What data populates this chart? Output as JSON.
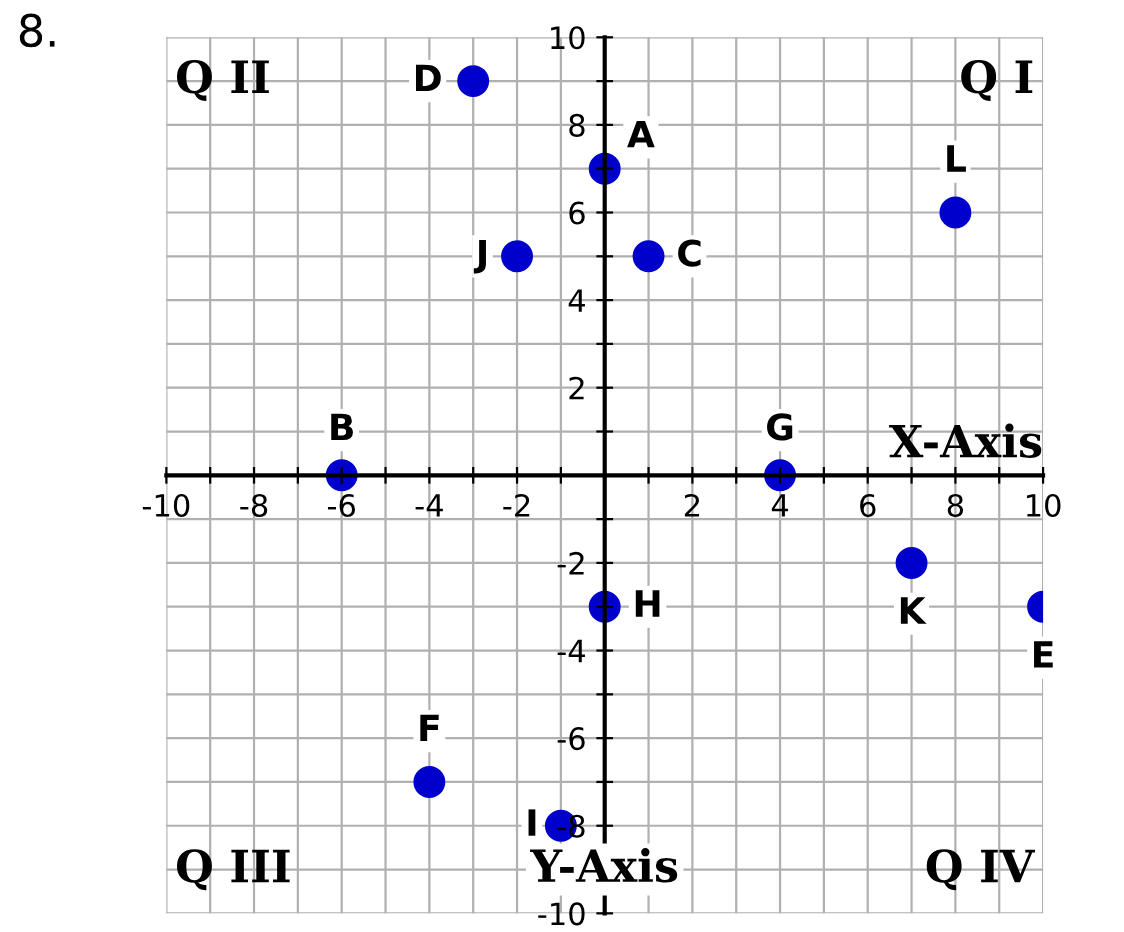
{
  "chart_data": {
    "type": "scatter",
    "title": "8.",
    "xlabel": "X-Axis",
    "ylabel": "Y-Axis",
    "x": [
      0,
      -6,
      1,
      -3,
      10,
      -4,
      4,
      0,
      -1,
      -2,
      7,
      8
    ],
    "values": [
      7,
      0,
      5,
      9,
      -3,
      -7,
      0,
      -3,
      -8,
      5,
      -2,
      6
    ],
    "color": "#0000cc",
    "marker": "circle",
    "grid": true,
    "xlim": [
      -10,
      10
    ],
    "ylim": [
      -10,
      10
    ],
    "xticks": [
      -10,
      {
        "value": -9,
        "label": null
      },
      -8,
      {
        "value": -7,
        "label": null
      },
      -6,
      {
        "value": -5,
        "label": null
      },
      -4,
      {
        "value": -3,
        "label": null
      },
      -2,
      {
        "value": -1,
        "label": null
      },
      {
        "value": 0,
        "label": null
      },
      {
        "value": 1,
        "label": null
      },
      2,
      {
        "value": 3,
        "label": null
      },
      4,
      {
        "value": 5,
        "label": null
      },
      6,
      {
        "value": 7,
        "label": null
      },
      8,
      {
        "value": 9,
        "label": null
      },
      10
    ],
    "yticks": [
      -10,
      {
        "value": -9,
        "label": null
      },
      -8,
      {
        "value": -7,
        "label": null
      },
      -6,
      {
        "value": -5,
        "label": null
      },
      -4,
      {
        "value": -3,
        "label": null
      },
      -2,
      {
        "value": -1,
        "label": null
      },
      {
        "value": 0,
        "label": null
      },
      {
        "value": 1,
        "label": null
      },
      2,
      {
        "value": 3,
        "label": null
      },
      4,
      {
        "value": 5,
        "label": null
      },
      6,
      {
        "value": 7,
        "label": null
      },
      8,
      {
        "value": 9,
        "label": null
      },
      10
    ],
    "annotations": [
      "Q I",
      "Q II",
      "Q III",
      "Q IV",
      {
        "text": "A",
        "x": 0,
        "y": 7
      },
      {
        "text": "B",
        "x": -6,
        "y": 0
      },
      {
        "text": "C",
        "x": 1,
        "y": 5
      },
      {
        "text": "D",
        "x": -3,
        "y": 9
      },
      {
        "text": "E",
        "x": 10,
        "y": -3
      },
      {
        "text": "F",
        "x": -4,
        "y": -7
      },
      {
        "text": "G",
        "x": 4,
        "y": 0
      },
      {
        "text": "H",
        "x": 0,
        "y": -3
      },
      {
        "text": "I",
        "x": -1,
        "y": -8
      },
      {
        "text": "J",
        "x": -2,
        "y": 5
      },
      {
        "text": "K",
        "x": 7,
        "y": -2
      },
      {
        "text": "L",
        "x": 8,
        "y": 6
      }
    ]
  }
}
